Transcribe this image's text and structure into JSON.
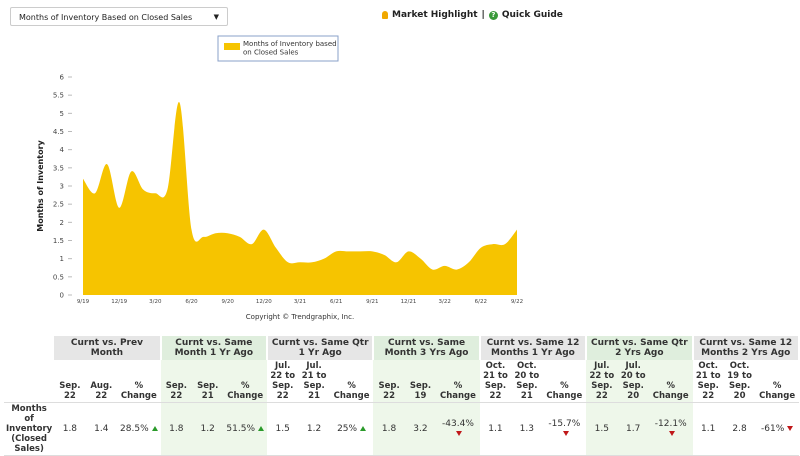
{
  "header": {
    "dropdown": "Months of Inventory Based on Closed Sales",
    "links": [
      "Market Highlight",
      "|",
      "Quick Guide"
    ]
  },
  "chart_data": {
    "type": "area",
    "legend": "Months of Inventory based on Closed Sales",
    "y_label": "Months of Inventory",
    "copyright": "Copyright © Trendgraphix, Inc.",
    "color": "#f6c400",
    "categories": [
      "9/19",
      null,
      null,
      "12/19",
      null,
      null,
      "3/20",
      null,
      null,
      "6/20",
      null,
      null,
      "9/20",
      null,
      null,
      "12/20",
      null,
      null,
      "3/21",
      null,
      null,
      "6/21",
      null,
      null,
      "9/21",
      null,
      null,
      "12/21",
      null,
      null,
      "3/22",
      null,
      null,
      "6/22",
      null,
      null,
      "9/22"
    ],
    "values": [
      3.2,
      2.8,
      3.6,
      2.4,
      3.4,
      2.9,
      2.8,
      2.9,
      5.3,
      1.8,
      1.6,
      1.7,
      1.7,
      1.6,
      1.4,
      1.8,
      1.3,
      0.9,
      0.9,
      0.9,
      1.0,
      1.2,
      1.2,
      1.2,
      1.2,
      1.1,
      0.9,
      1.2,
      1.0,
      0.7,
      0.8,
      0.7,
      0.9,
      1.3,
      1.4,
      1.4,
      1.8
    ],
    "ylim": [
      0,
      6
    ],
    "yticks": [
      0,
      0.5,
      1,
      1.5,
      2,
      2.5,
      3,
      3.5,
      4,
      4.5,
      5,
      5.5,
      6
    ]
  },
  "table": {
    "row_label": "Months of Inventory (Closed Sales)",
    "groups": [
      {
        "title": "Curnt vs. Prev Month",
        "columns": [
          "Sep. 22",
          "Aug. 22",
          "% Change"
        ],
        "values": [
          "1.8",
          "1.4",
          "28.5%"
        ],
        "trend": "up"
      },
      {
        "title": "Curnt vs. Same Month 1 Yr Ago",
        "columns": [
          "Sep. 22",
          "Sep. 21",
          "% Change"
        ],
        "values": [
          "1.8",
          "1.2",
          "51.5%"
        ],
        "trend": "up"
      },
      {
        "title": "Curnt vs. Same Qtr 1 Yr Ago",
        "columns": [
          "Jul. 22 to Sep. 22",
          "Jul. 21 to Sep. 21",
          "% Change"
        ],
        "values": [
          "1.5",
          "1.2",
          "25%"
        ],
        "trend": "up"
      },
      {
        "title": "Curnt vs. Same Month 3 Yrs Ago",
        "columns": [
          "Sep. 22",
          "Sep. 19",
          "% Change"
        ],
        "values": [
          "1.8",
          "3.2",
          "-43.4%"
        ],
        "trend": "down"
      },
      {
        "title": "Curnt vs. Same 12 Months 1 Yr Ago",
        "columns": [
          "Oct. 21 to Sep. 22",
          "Oct. 20 to Sep. 21",
          "% Change"
        ],
        "values": [
          "1.1",
          "1.3",
          "-15.7%"
        ],
        "trend": "down"
      },
      {
        "title": "Curnt vs. Same Qtr 2 Yrs Ago",
        "columns": [
          "Jul. 22 to Sep. 22",
          "Jul. 20 to Sep. 20",
          "% Change"
        ],
        "values": [
          "1.5",
          "1.7",
          "-12.1%"
        ],
        "trend": "down"
      },
      {
        "title": "Curnt vs. Same 12 Months 2 Yrs Ago",
        "columns": [
          "Oct. 21 to Sep. 22",
          "Oct. 19 to Sep. 20",
          "% Change"
        ],
        "values": [
          "1.1",
          "2.8",
          "-61%"
        ],
        "trend": "down"
      }
    ]
  }
}
